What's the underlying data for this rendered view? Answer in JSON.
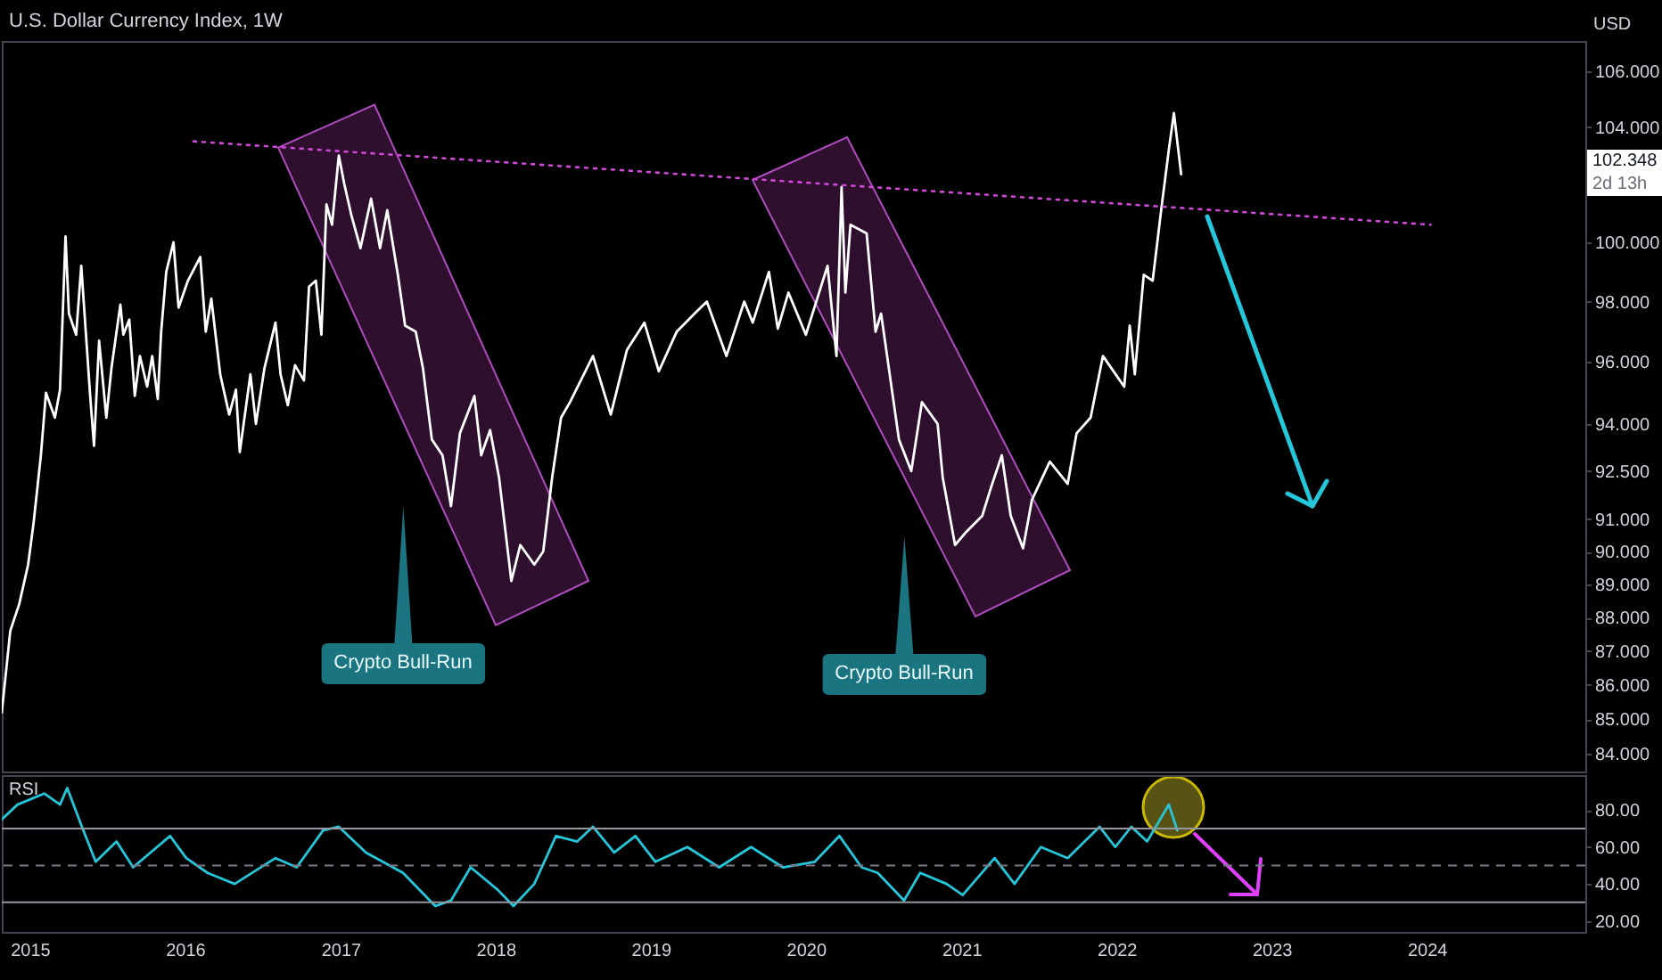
{
  "chart_data": [
    {
      "type": "line",
      "title": "U.S. Dollar Currency Index, 1W",
      "ylabel": "USD",
      "log": true,
      "tick_labels": "y",
      "xlim": [
        "2014-10-27",
        "2025-01-08"
      ],
      "ylim": [
        83.5,
        107.1
      ],
      "yticks": [
        {
          "value": 84,
          "label": "84.000"
        },
        {
          "value": 85,
          "label": "85.000"
        },
        {
          "value": 86,
          "label": "86.000"
        },
        {
          "value": 87,
          "label": "87.000"
        },
        {
          "value": 88,
          "label": "88.000"
        },
        {
          "value": 89,
          "label": "89.000"
        },
        {
          "value": 90,
          "label": "90.000"
        },
        {
          "value": 91,
          "label": "91.000"
        },
        {
          "value": 92.5,
          "label": "92.500"
        },
        {
          "value": 94,
          "label": "94.000"
        },
        {
          "value": 96,
          "label": "96.000"
        },
        {
          "value": 98,
          "label": "98.000"
        },
        {
          "value": 100,
          "label": "100.000"
        },
        {
          "value": 104,
          "label": "104.000"
        },
        {
          "value": 106,
          "label": "106.000"
        }
      ],
      "x": [
        "2014-10-27",
        "2014-11-16",
        "2014-12-07",
        "2014-12-28",
        "2015-01-10",
        "2015-01-27",
        "2015-02-08",
        "2015-03-01",
        "2015-03-13",
        "2015-03-26",
        "2015-04-03",
        "2015-04-20",
        "2015-05-02",
        "2015-05-23",
        "2015-06-01",
        "2015-06-13",
        "2015-06-30",
        "2015-07-12",
        "2015-08-02",
        "2015-08-09",
        "2015-08-23",
        "2015-09-05",
        "2015-09-17",
        "2015-10-04",
        "2015-10-16",
        "2015-10-29",
        "2015-11-06",
        "2015-11-18",
        "2015-12-05",
        "2015-12-17",
        "2016-01-08",
        "2016-02-06",
        "2016-02-19",
        "2016-03-03",
        "2016-03-24",
        "2016-04-14",
        "2016-04-30",
        "2016-05-09",
        "2016-06-03",
        "2016-06-16",
        "2016-07-06",
        "2016-08-01",
        "2016-08-13",
        "2016-08-30",
        "2016-09-16",
        "2016-10-07",
        "2016-10-19",
        "2016-11-04",
        "2016-11-17",
        "2016-11-29",
        "2016-12-12",
        "2016-12-28",
        "2017-01-10",
        "2017-01-27",
        "2017-02-17",
        "2017-03-14",
        "2017-04-04",
        "2017-04-21",
        "2017-05-16",
        "2017-06-02",
        "2017-06-27",
        "2017-07-14",
        "2017-08-04",
        "2017-08-29",
        "2017-09-18",
        "2017-10-09",
        "2017-11-12",
        "2017-11-28",
        "2017-12-19",
        "2018-01-09",
        "2018-02-07",
        "2018-02-28",
        "2018-04-02",
        "2018-04-23",
        "2018-05-14",
        "2018-06-04",
        "2018-06-25",
        "2018-08-18",
        "2018-09-29",
        "2018-11-06",
        "2018-12-17",
        "2019-01-20",
        "2019-03-03",
        "2019-04-14",
        "2019-05-13",
        "2019-06-28",
        "2019-08-09",
        "2019-08-29",
        "2019-10-06",
        "2019-10-27",
        "2019-11-21",
        "2020-01-01",
        "2020-02-21",
        "2020-03-13",
        "2020-03-25",
        "2020-04-03",
        "2020-04-15",
        "2020-05-23",
        "2020-06-13",
        "2020-06-26",
        "2020-08-07",
        "2020-09-05",
        "2020-09-30",
        "2020-11-06",
        "2020-11-18",
        "2020-12-17",
        "2021-01-12",
        "2021-02-19",
        "2021-03-12",
        "2021-04-06",
        "2021-04-27",
        "2021-05-26",
        "2021-06-16",
        "2021-07-28",
        "2021-09-08",
        "2021-09-29",
        "2021-11-01",
        "2021-11-30",
        "2022-01-19",
        "2022-02-01",
        "2022-02-13",
        "2022-03-06",
        "2022-03-27",
        "2022-04-16",
        "2022-05-04",
        "2022-05-16",
        "2022-06-02"
      ],
      "series": [
        {
          "color": "#ffffff",
          "values": [
            85.2,
            87.6,
            88.4,
            89.6,
            90.9,
            93.0,
            95.0,
            94.2,
            95.1,
            100.2,
            97.6,
            96.9,
            99.2,
            94.9,
            93.3,
            96.7,
            94.2,
            95.8,
            97.9,
            96.9,
            97.4,
            94.9,
            96.2,
            95.2,
            96.2,
            94.8,
            97.0,
            99.0,
            100.0,
            97.8,
            98.7,
            99.5,
            97.0,
            98.1,
            95.6,
            94.3,
            95.1,
            93.1,
            95.6,
            94.0,
            95.8,
            97.3,
            95.6,
            94.6,
            95.9,
            95.4,
            98.5,
            98.7,
            96.9,
            101.3,
            100.6,
            103.0,
            102.0,
            100.9,
            99.8,
            101.5,
            99.8,
            101.1,
            98.9,
            97.2,
            97.0,
            95.8,
            93.5,
            93.0,
            91.4,
            93.7,
            94.9,
            93.0,
            93.8,
            92.3,
            89.1,
            90.2,
            89.6,
            90.0,
            92.3,
            94.2,
            94.7,
            96.2,
            94.3,
            96.4,
            97.3,
            95.7,
            97.0,
            97.6,
            98.0,
            96.2,
            98.0,
            97.3,
            99.0,
            97.1,
            98.3,
            96.9,
            99.2,
            96.2,
            101.9,
            98.3,
            100.6,
            100.3,
            97.0,
            97.6,
            93.5,
            92.5,
            94.7,
            94.0,
            92.3,
            90.2,
            90.6,
            91.1,
            92.0,
            93.0,
            91.1,
            90.1,
            91.6,
            92.8,
            92.1,
            93.7,
            94.2,
            96.2,
            95.2,
            97.2,
            95.6,
            98.9,
            98.7,
            101.1,
            103.2,
            104.5,
            102.348
          ]
        },
        {
          "type": "line",
          "line_style": "dotted",
          "color": "#d048d8",
          "x": [
            "2016-01-21",
            "2024-01-10"
          ],
          "values": [
            103.5,
            100.6
          ]
        }
      ],
      "annotations": [
        "Crypto Bull-Run",
        "Crypto Bull-Run",
        "102.348",
        "2d 13h"
      ]
    },
    {
      "type": "line",
      "title": "RSI",
      "color": "#26c6da",
      "xlim": [
        "2014-10-27",
        "2025-01-08"
      ],
      "xticks": [
        {
          "value": "2015-01-01",
          "label": "2015"
        },
        {
          "value": "2016-01-01",
          "label": "2016"
        },
        {
          "value": "2017-01-01",
          "label": "2017"
        },
        {
          "value": "2018-01-01",
          "label": "2018"
        },
        {
          "value": "2019-01-01",
          "label": "2019"
        },
        {
          "value": "2020-01-01",
          "label": "2020"
        },
        {
          "value": "2021-01-01",
          "label": "2021"
        },
        {
          "value": "2022-01-01",
          "label": "2022"
        },
        {
          "value": "2023-01-01",
          "label": "2023"
        },
        {
          "value": "2024-01-01",
          "label": "2024"
        }
      ],
      "ylim": [
        14,
        99
      ],
      "yticks": [
        {
          "value": 20,
          "label": "20.00"
        },
        {
          "value": 40,
          "label": "40.00"
        },
        {
          "value": 60,
          "label": "60.00"
        },
        {
          "value": 80,
          "label": "80.00"
        }
      ],
      "ref_lines": [
        {
          "axis": "y",
          "value": 70,
          "color": "#9598a1"
        },
        {
          "axis": "y",
          "value": 50,
          "color": "#787b86",
          "line_style": "dashed"
        },
        {
          "axis": "y",
          "value": 30,
          "color": "#9598a1"
        }
      ],
      "x": [
        "2014-10-27",
        "2014-12-03",
        "2015-02-04",
        "2015-03-13",
        "2015-03-30",
        "2015-05-02",
        "2015-06-05",
        "2015-07-24",
        "2015-09-01",
        "2015-11-27",
        "2016-01-04",
        "2016-02-23",
        "2016-04-27",
        "2016-08-01",
        "2016-09-20",
        "2016-11-21",
        "2016-12-28",
        "2017-03-02",
        "2017-05-28",
        "2017-08-12",
        "2017-09-18",
        "2017-11-03",
        "2018-01-05",
        "2018-02-12",
        "2018-04-02",
        "2018-05-23",
        "2018-07-12",
        "2018-08-18",
        "2018-10-07",
        "2018-11-26",
        "2019-01-12",
        "2019-03-28",
        "2019-06-11",
        "2019-08-25",
        "2019-11-08",
        "2020-01-22",
        "2020-03-20",
        "2020-05-11",
        "2020-06-18",
        "2020-08-19",
        "2020-09-26",
        "2020-11-27",
        "2021-01-04",
        "2021-03-20",
        "2021-05-06",
        "2021-07-07",
        "2021-09-08",
        "2021-11-22",
        "2021-12-29",
        "2022-02-05",
        "2022-03-14",
        "2022-05-04",
        "2022-05-24"
      ],
      "values": [
        75,
        83,
        89,
        83,
        92,
        72,
        52,
        63,
        49,
        66,
        54,
        46,
        40,
        54,
        49,
        69,
        71,
        57,
        46,
        28,
        31,
        49,
        37,
        28,
        40,
        66,
        63,
        71,
        57,
        66,
        52,
        60,
        49,
        60,
        49,
        52,
        66,
        49,
        46,
        31,
        46,
        40,
        34,
        54,
        40,
        60,
        54,
        71,
        60,
        71,
        63,
        83,
        69
      ]
    }
  ]
}
